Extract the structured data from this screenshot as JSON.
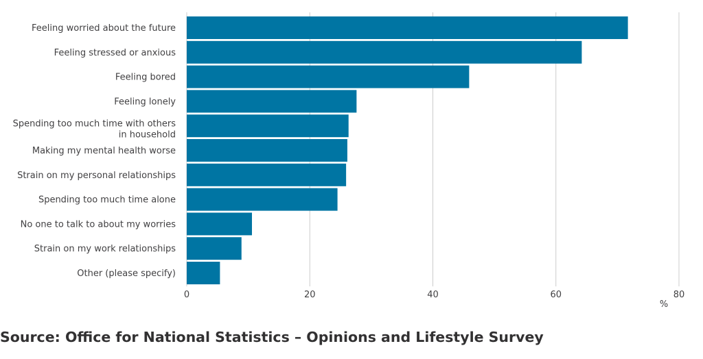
{
  "chart_data": {
    "type": "bar",
    "orientation": "horizontal",
    "categories": [
      "Feeling worried about the future",
      "Feeling stressed or anxious",
      "Feeling bored",
      "Feeling lonely",
      "Spending too much time with others in household",
      "Making my mental health worse",
      "Strain on my personal relationships",
      "Spending too much time alone",
      "No one to talk to about my worries",
      "Strain on my work relationships",
      "Other (please specify)"
    ],
    "category_lines": [
      [
        "Feeling worried about the future"
      ],
      [
        "Feeling stressed or anxious"
      ],
      [
        "Feeling bored"
      ],
      [
        "Feeling lonely"
      ],
      [
        "Spending too much time with others",
        "in household"
      ],
      [
        "Making my mental health worse"
      ],
      [
        "Strain on my personal relationships"
      ],
      [
        "Spending too much time alone"
      ],
      [
        "No one to talk to about my worries"
      ],
      [
        "Strain on my work relationships"
      ],
      [
        "Other (please specify)"
      ]
    ],
    "values": [
      71.7,
      64.2,
      45.9,
      27.6,
      26.3,
      26.1,
      25.9,
      24.5,
      10.6,
      8.9,
      5.4
    ],
    "xlim": [
      0,
      80
    ],
    "xticks": [
      0,
      20,
      40,
      60,
      80
    ],
    "xlabel": "%",
    "ylabel": "",
    "title": "",
    "grid": "vertical",
    "colors": {
      "bar": "#0075a3",
      "grid": "#cccccc",
      "text": "#414042"
    }
  },
  "source": "Source: Office for National Statistics – Opinions and Lifestyle Survey"
}
